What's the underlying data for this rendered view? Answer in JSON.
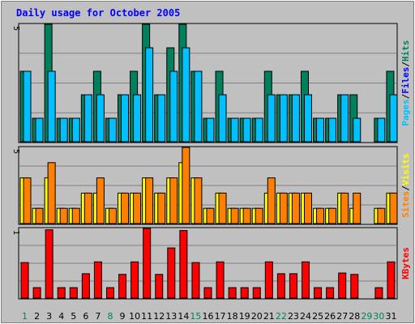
{
  "chart_data": [
    {
      "type": "bar",
      "title": "Daily usage for October 2005",
      "categories": [
        "1",
        "2",
        "3",
        "4",
        "5",
        "6",
        "7",
        "8",
        "9",
        "10",
        "11",
        "12",
        "13",
        "14",
        "15",
        "16",
        "17",
        "18",
        "19",
        "20",
        "21",
        "22",
        "23",
        "24",
        "25",
        "26",
        "27",
        "28",
        "29",
        "30",
        "31"
      ],
      "weekend_days": [
        "1",
        "8",
        "15",
        "22",
        "29",
        "30"
      ],
      "ylabel_parts": [
        "Pages",
        "/",
        "Files",
        "/",
        "Hits"
      ],
      "ylim": [
        0,
        5
      ],
      "y_max_label": "5",
      "series": [
        {
          "name": "Hits",
          "color": "#00805c",
          "values": [
            3,
            1,
            5,
            1,
            1,
            2,
            3,
            1,
            2,
            3,
            5,
            2,
            4,
            5,
            3,
            1,
            3,
            1,
            1,
            1,
            3,
            2,
            2,
            3,
            1,
            1,
            2,
            2,
            0,
            1,
            3
          ]
        },
        {
          "name": "Pages",
          "color": "#00c0ff",
          "values": [
            3,
            1,
            3,
            1,
            1,
            2,
            2,
            1,
            2,
            2,
            4,
            2,
            3,
            4,
            3,
            1,
            2,
            1,
            1,
            1,
            2,
            2,
            2,
            2,
            1,
            1,
            2,
            1,
            0,
            1,
            2
          ]
        }
      ]
    },
    {
      "type": "bar",
      "ylabel_parts": [
        "Sites",
        "/",
        "Visits"
      ],
      "ylim": [
        0,
        5
      ],
      "y_max_label": "5",
      "series": [
        {
          "name": "Visits",
          "color": "#ffff00",
          "values": [
            3,
            1,
            3,
            1,
            1,
            2,
            2,
            1,
            2,
            2,
            3,
            2,
            3,
            4,
            3,
            1,
            2,
            1,
            1,
            1,
            2,
            2,
            2,
            2,
            1,
            1,
            2,
            1,
            0,
            1,
            2
          ]
        },
        {
          "name": "Sites",
          "color": "#ff8000",
          "values": [
            3,
            1,
            4,
            1,
            1,
            2,
            3,
            1,
            2,
            2,
            3,
            2,
            3,
            5,
            3,
            1,
            2,
            1,
            1,
            1,
            3,
            2,
            2,
            2,
            1,
            1,
            2,
            2,
            0,
            1,
            2
          ]
        }
      ]
    },
    {
      "type": "bar",
      "ylabel_parts": [
        "KBytes"
      ],
      "ylim": [
        0,
        1
      ],
      "y_max_label": "1",
      "series": [
        {
          "name": "KBytes",
          "color": "#ff0000",
          "values": [
            0.51,
            0.15,
            0.98,
            0.15,
            0.15,
            0.35,
            0.52,
            0.15,
            0.34,
            0.52,
            1.0,
            0.34,
            0.72,
            0.97,
            0.51,
            0.15,
            0.52,
            0.15,
            0.15,
            0.15,
            0.52,
            0.35,
            0.35,
            0.52,
            0.15,
            0.15,
            0.36,
            0.34,
            0,
            0.15,
            0.52
          ]
        }
      ]
    }
  ],
  "colors": {
    "background": "#c0c0c0",
    "frame_dark": "#808080",
    "frame_light": "#ffffff",
    "title_text": "#0000ff",
    "weekday_text": "#000000",
    "weekend_text": "#00805c",
    "gridline": "#808080"
  }
}
